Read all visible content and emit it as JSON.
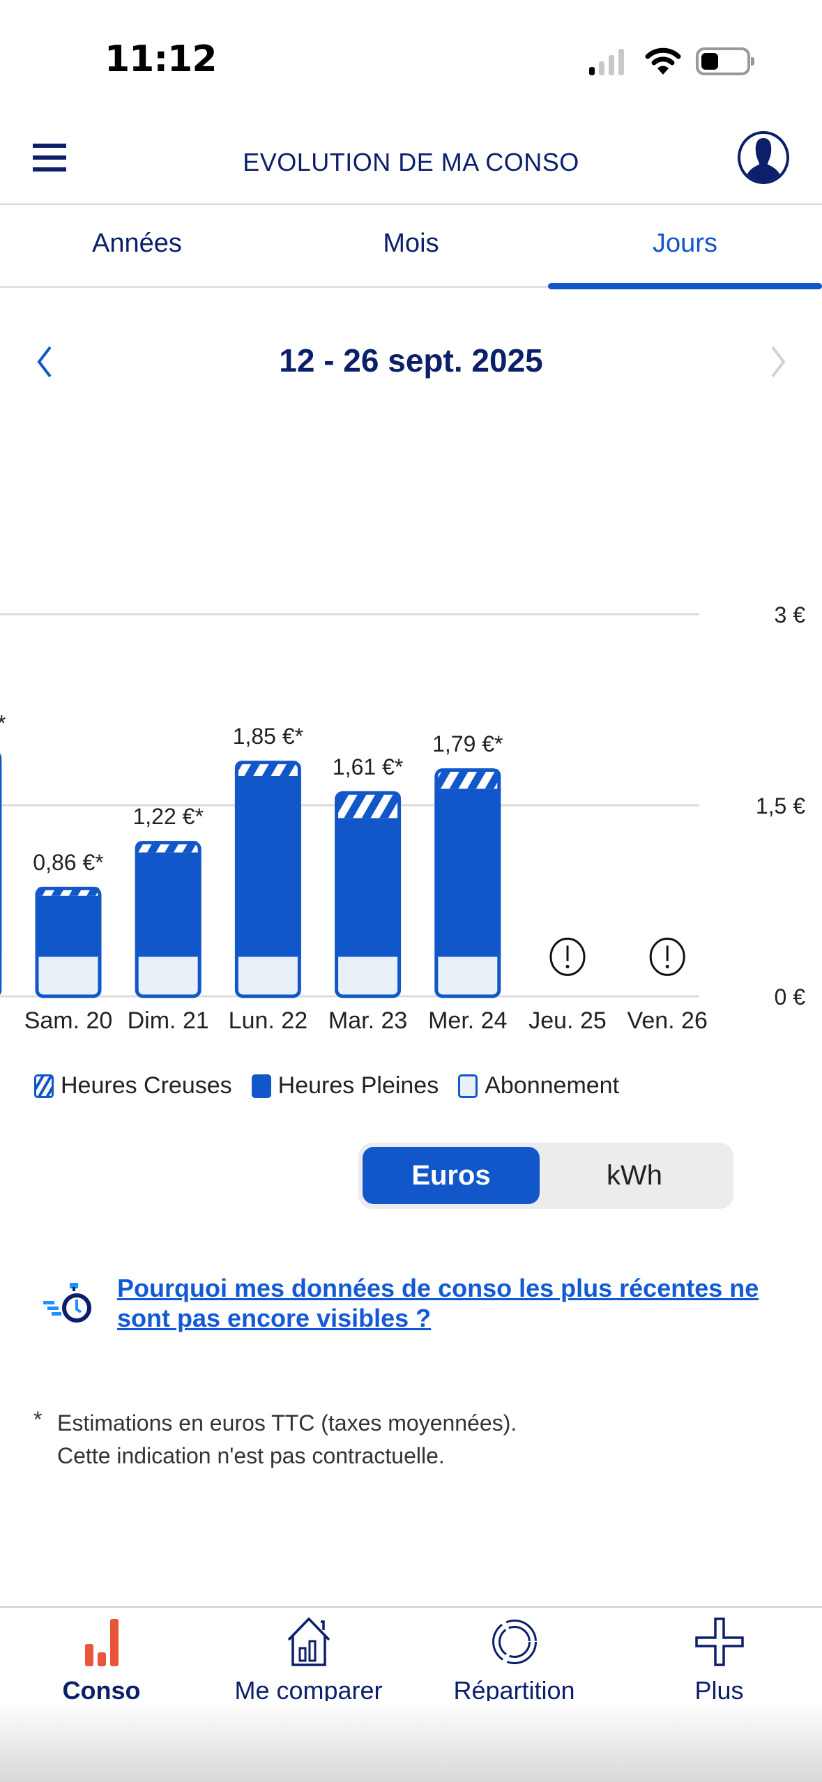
{
  "status_bar": {
    "time": "11:12",
    "icons": [
      "signal-icon",
      "wifi-icon",
      "battery-icon"
    ]
  },
  "header": {
    "title": "EVOLUTION DE MA CONSO",
    "menu_icon": "hamburger-icon",
    "profile_icon": "user-icon"
  },
  "tabs": [
    {
      "label": "Années",
      "active": false
    },
    {
      "label": "Mois",
      "active": false
    },
    {
      "label": "Jours",
      "active": true
    }
  ],
  "period": {
    "label": "12 - 26 sept. 2025",
    "prev_enabled": true,
    "next_enabled": false
  },
  "colors": {
    "primary": "#1257c9",
    "navy": "#0b1f6b",
    "subscription_fill": "#e8f0f8",
    "active_nav": "#e8553a"
  },
  "chart_data": {
    "type": "bar",
    "stacked": true,
    "categories": [
      "Sam. 20",
      "Dim. 21",
      "Lun. 22",
      "Mar. 23",
      "Mer. 24",
      "Jeu. 25",
      "Ven. 26"
    ],
    "data_labels": [
      "0,86 €*",
      "1,22 €*",
      "1,85 €*",
      "1,61 €*",
      "1,79 €*",
      null,
      null
    ],
    "series": [
      {
        "name": "Abonnement",
        "values": [
          0.31,
          0.31,
          0.31,
          0.31,
          0.31,
          null,
          null
        ]
      },
      {
        "name": "Heures Pleines",
        "values": [
          0.48,
          0.82,
          1.42,
          1.09,
          1.32,
          null,
          null
        ]
      },
      {
        "name": "Heures Creuses",
        "values": [
          0.07,
          0.09,
          0.12,
          0.21,
          0.16,
          null,
          null
        ]
      }
    ],
    "totals": [
      0.86,
      1.22,
      1.85,
      1.61,
      1.79,
      null,
      null
    ],
    "missing_data_icon": "exclamation-circle-icon",
    "partial_previous_bar_total": 1.93,
    "ylim": [
      0,
      3
    ],
    "y_ticks": [
      "0 €",
      "1,5 €",
      "3 €"
    ],
    "y_tick_values": [
      0,
      1.5,
      3
    ],
    "y_axis_side": "right",
    "grid": true,
    "legend_position": "bottom-left"
  },
  "legend": [
    {
      "label": "Heures Creuses"
    },
    {
      "label": "Heures Pleines"
    },
    {
      "label": "Abonnement"
    }
  ],
  "unit_toggle": {
    "options": [
      "Euros",
      "kWh"
    ],
    "selected": "Euros"
  },
  "info_link": {
    "text": "Pourquoi mes données de conso les plus récentes ne sont pas encore visibles ?",
    "icon": "stopwatch-icon"
  },
  "footnote": {
    "star": "*",
    "line1": "Estimations en euros TTC (taxes moyennées).",
    "line2": "Cette indication n'est pas contractuelle."
  },
  "bottom_nav": [
    {
      "label": "Conso",
      "icon": "bar-chart-icon",
      "active": true
    },
    {
      "label": "Me comparer",
      "icon": "house-chart-icon",
      "active": false
    },
    {
      "label": "Répartition",
      "icon": "donut-icon",
      "active": false
    },
    {
      "label": "Plus",
      "icon": "plus-icon",
      "active": false
    }
  ]
}
